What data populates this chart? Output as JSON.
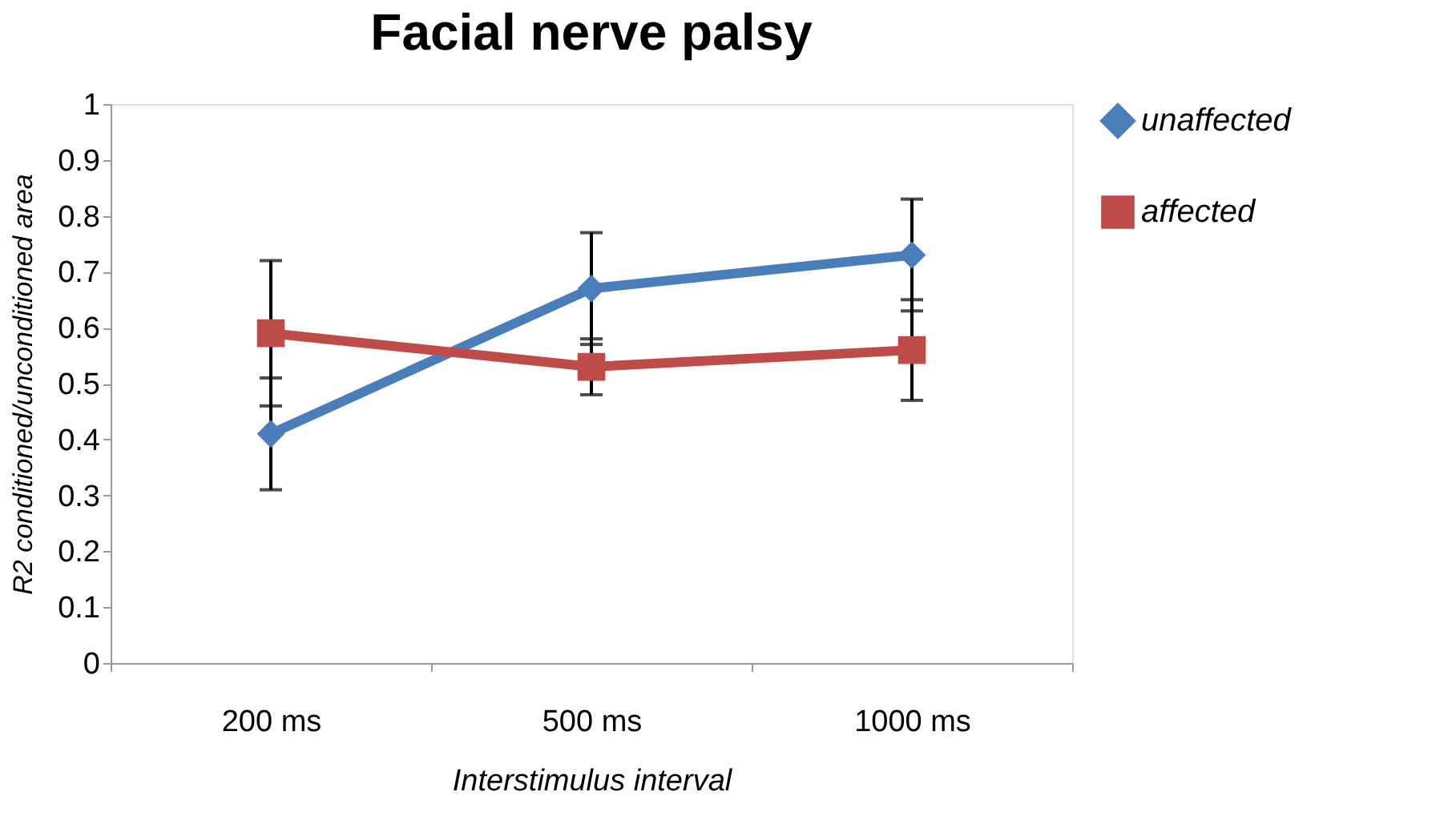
{
  "chart_data": {
    "type": "line",
    "title": "Facial nerve palsy",
    "xlabel": "Interstimulus interval",
    "ylabel": "R2 conditioned/unconditioned area",
    "categories": [
      "200 ms",
      "500 ms",
      "1000 ms"
    ],
    "series": [
      {
        "name": "unaffected",
        "color": "#4a7ebb",
        "marker": "diamond",
        "values": [
          0.41,
          0.67,
          0.73
        ],
        "errors": [
          0.1,
          0.1,
          0.1
        ]
      },
      {
        "name": "affected",
        "color": "#be4b48",
        "marker": "square",
        "values": [
          0.59,
          0.53,
          0.56
        ],
        "errors": [
          0.13,
          0.05,
          0.09
        ]
      }
    ],
    "ylim": [
      0,
      1
    ],
    "yticks": [
      0,
      0.1,
      0.2,
      0.3,
      0.4,
      0.5,
      0.6,
      0.7,
      0.8,
      0.9,
      1
    ],
    "grid": false,
    "legend": "right"
  }
}
